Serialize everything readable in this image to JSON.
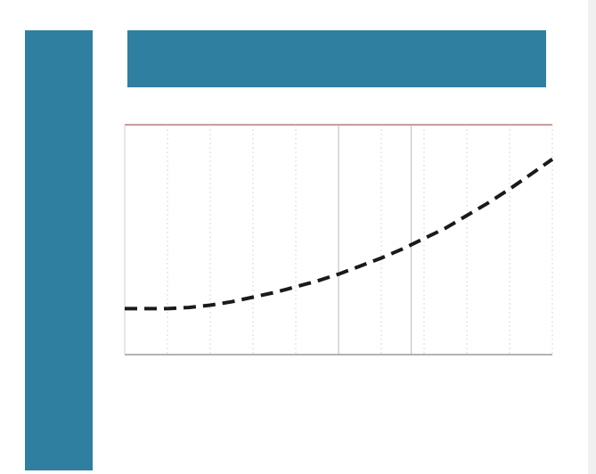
{
  "side_banner": {
    "text": ""
  },
  "header": {
    "title": ""
  },
  "chart_data": {
    "type": "line",
    "title": "",
    "subtitle": "",
    "xlabel": "",
    "ylabel": "",
    "xlim": [
      0,
      10
    ],
    "ylim": [
      0,
      100
    ],
    "x_ticks": [],
    "grid": true,
    "colors": {
      "line": "#1a1a1a",
      "top_rule": "#c69c9c",
      "axis": "#9a9a9a",
      "grid": "#d8d8d8",
      "accent": "#2f7fa1"
    },
    "series": [
      {
        "style": "dashed",
        "x": [
          0,
          0.5,
          1,
          1.5,
          2,
          2.5,
          3,
          3.5,
          4,
          4.5,
          5,
          5.5,
          6,
          6.5,
          7,
          7.5,
          8,
          8.5,
          9,
          9.5,
          10
        ],
        "y": [
          20,
          20,
          20,
          20.5,
          21.5,
          23,
          25,
          27,
          29.5,
          32,
          35,
          38.5,
          42,
          46,
          50.5,
          55,
          60.5,
          66,
          72,
          78.5,
          85
        ]
      }
    ],
    "legend": {
      "placement": "bottom-left",
      "lines": []
    }
  }
}
